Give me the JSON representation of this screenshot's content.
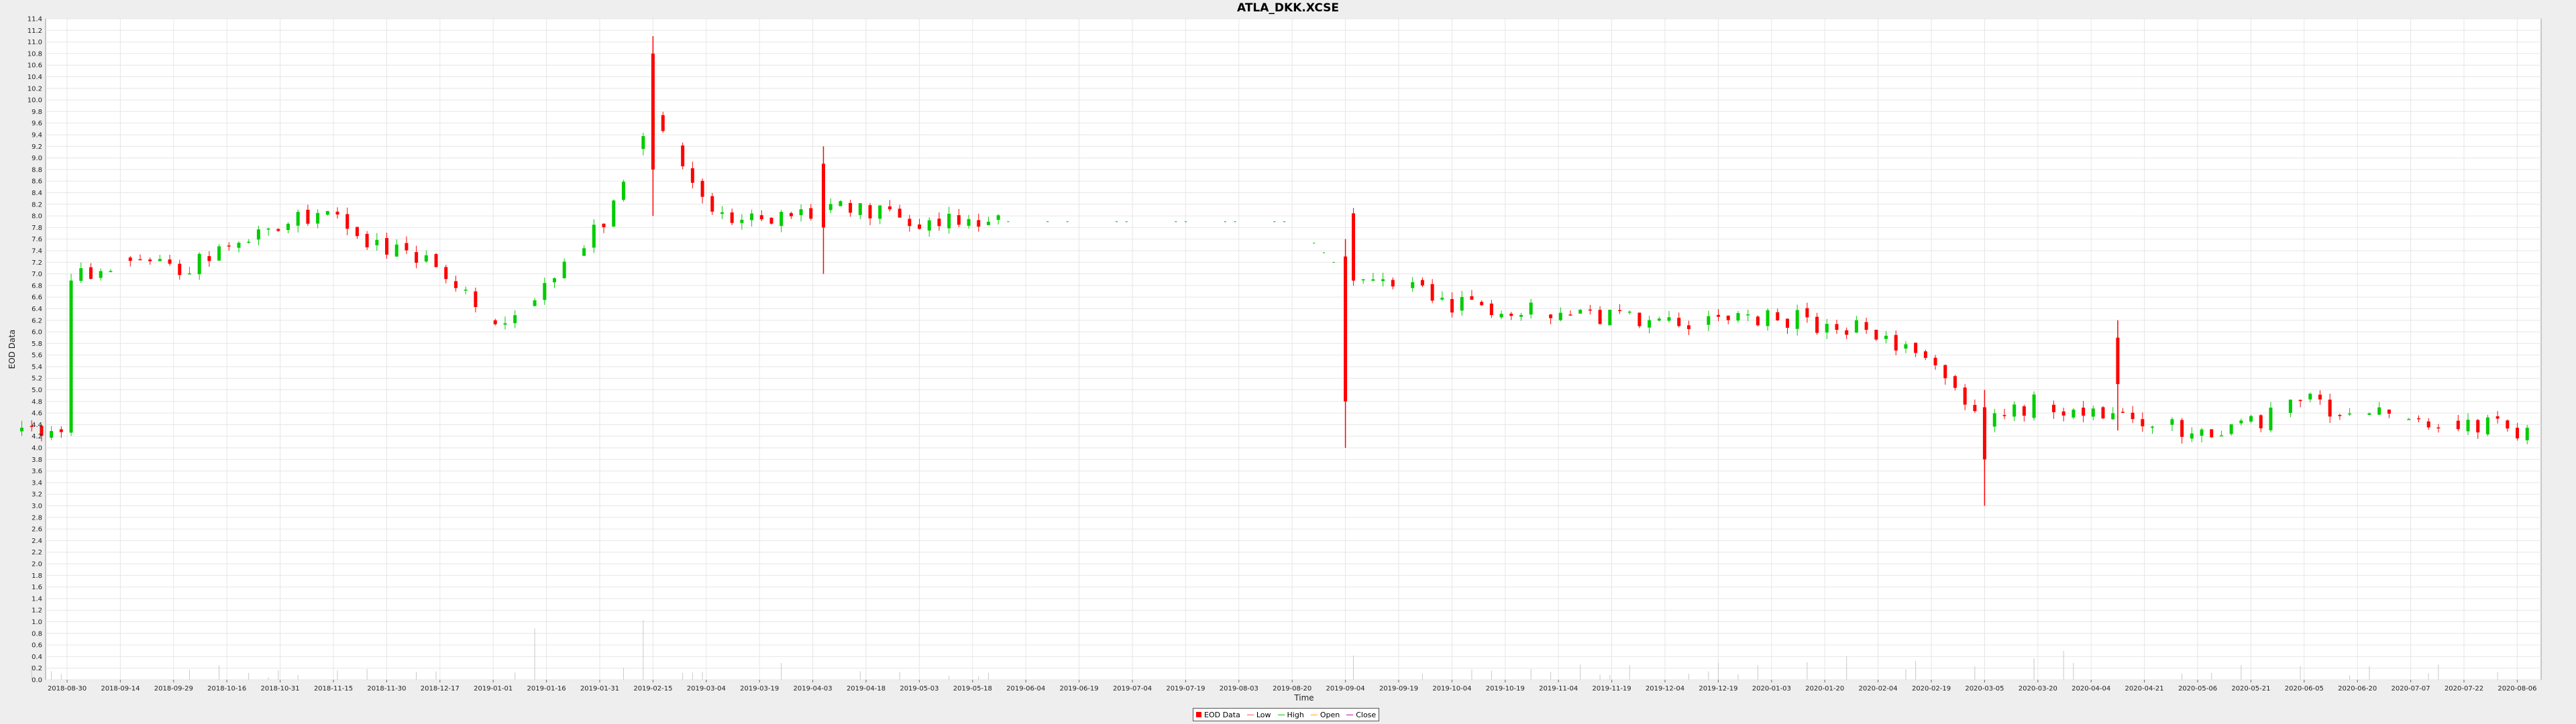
{
  "chart_data": {
    "type": "candlestick",
    "title": "ATLA_DKK.XCSE",
    "xlabel": "Time",
    "ylabel": "EOD Data",
    "ylim": [
      0,
      11.4
    ],
    "y_tick_step": 0.2,
    "grid": true,
    "legend_position": "bottom-center",
    "x_ticks": [
      "2018-08-30",
      "2018-09-14",
      "2018-09-29",
      "2018-10-16",
      "2018-10-31",
      "2018-11-15",
      "2018-11-30",
      "2018-12-17",
      "2019-01-01",
      "2019-01-16",
      "2019-01-31",
      "2019-02-15",
      "2019-03-04",
      "2019-03-19",
      "2019-04-03",
      "2019-04-18",
      "2019-05-03",
      "2019-05-18",
      "2019-06-04",
      "2019-06-19",
      "2019-07-04",
      "2019-07-19",
      "2019-08-03",
      "2019-08-20",
      "2019-09-04",
      "2019-09-19",
      "2019-10-04",
      "2019-10-19",
      "2019-11-04",
      "2019-11-19",
      "2019-12-04",
      "2019-12-19",
      "2020-01-03",
      "2020-01-20",
      "2020-02-04",
      "2020-02-19",
      "2020-03-05",
      "2020-03-20",
      "2020-04-04",
      "2020-04-21",
      "2020-05-06",
      "2020-05-21",
      "2020-06-05",
      "2020-06-20",
      "2020-07-07",
      "2020-07-22",
      "2020-08-06"
    ],
    "trend_close": [
      [
        0,
        6.85
      ],
      [
        1,
        7.3
      ],
      [
        2,
        7.05
      ],
      [
        3,
        7.4
      ],
      [
        4,
        7.9
      ],
      [
        5,
        8.0
      ],
      [
        6,
        7.4
      ],
      [
        7,
        7.2
      ],
      [
        8,
        6.0
      ],
      [
        9,
        6.7
      ],
      [
        10,
        7.8
      ],
      [
        11,
        9.9
      ],
      [
        12,
        8.1
      ],
      [
        13,
        7.9
      ],
      [
        14,
        8.1
      ],
      [
        15,
        8.1
      ],
      [
        16,
        7.9
      ],
      [
        17,
        7.9
      ],
      [
        18,
        7.9
      ],
      [
        19,
        7.9
      ],
      [
        20,
        7.9
      ],
      [
        21,
        7.9
      ],
      [
        22,
        7.9
      ],
      [
        23,
        7.9
      ],
      [
        24,
        7.0
      ],
      [
        25,
        6.8
      ],
      [
        26,
        6.5
      ],
      [
        27,
        6.4
      ],
      [
        28,
        6.3
      ],
      [
        29,
        6.3
      ],
      [
        30,
        6.2
      ],
      [
        31,
        6.1
      ],
      [
        32,
        6.3
      ],
      [
        33,
        6.1
      ],
      [
        34,
        6.0
      ],
      [
        35,
        5.5
      ],
      [
        36,
        4.4
      ],
      [
        37,
        4.8
      ],
      [
        38,
        4.6
      ],
      [
        39,
        4.4
      ],
      [
        40,
        4.3
      ],
      [
        41,
        4.4
      ],
      [
        42,
        4.8
      ],
      [
        43,
        4.6
      ],
      [
        44,
        4.5
      ],
      [
        45,
        4.4
      ],
      [
        46,
        4.3
      ]
    ],
    "gap_start_index": 17.6,
    "gap_end_index": 24.0,
    "spikes": [
      [
        24.0,
        4.0,
        7.6
      ],
      [
        36.0,
        3.0,
        5.0
      ],
      [
        11.0,
        8.0,
        11.1
      ],
      [
        14.2,
        7.0,
        9.2
      ],
      [
        38.5,
        4.3,
        6.2
      ]
    ],
    "volume_levels": [
      0.3,
      0.2,
      0.3,
      0.4,
      0.2,
      0.3,
      0.2,
      0.3,
      0.3,
      0.9,
      0.6,
      1.35,
      0.5,
      0.3,
      0.4,
      0.3,
      0.3,
      0.2,
      0.05,
      0.05,
      0.05,
      0.05,
      0.05,
      0.05,
      1.0,
      0.4,
      0.3,
      0.3,
      0.3,
      0.3,
      0.3,
      0.4,
      0.4,
      0.5,
      0.5,
      0.5,
      0.8,
      0.6,
      0.6,
      0.5,
      0.4,
      0.4,
      0.3,
      0.3,
      0.3,
      0.3,
      0.3
    ],
    "series": [
      {
        "name": "EOD Data",
        "color": "#ff0000"
      },
      {
        "name": "Low",
        "color": "#ff5555"
      },
      {
        "name": "High",
        "color": "#00cc00"
      },
      {
        "name": "Open",
        "color": "#ffaa00"
      },
      {
        "name": "Close",
        "color": "#cc00cc"
      }
    ]
  }
}
